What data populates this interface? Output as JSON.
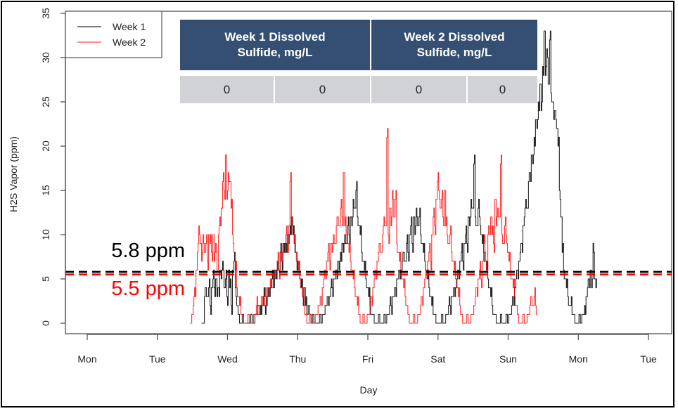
{
  "chart_data": {
    "type": "line",
    "title": "",
    "xlabel": "Day",
    "ylabel": "H2S Vapor (ppm)",
    "ylim": [
      0,
      35
    ],
    "yticks": [
      0,
      5,
      10,
      15,
      20,
      25,
      30,
      35
    ],
    "xlim_days": [
      -0.3,
      8.3
    ],
    "xticks": [
      {
        "day": 0,
        "label": "Mon"
      },
      {
        "day": 1,
        "label": "Tue"
      },
      {
        "day": 2,
        "label": "Wed"
      },
      {
        "day": 3,
        "label": "Thu"
      },
      {
        "day": 4,
        "label": "Fri"
      },
      {
        "day": 5,
        "label": "Sat"
      },
      {
        "day": 6,
        "label": "Sun"
      },
      {
        "day": 7,
        "label": "Mon"
      },
      {
        "day": 8,
        "label": "Tue"
      }
    ],
    "grid": false,
    "legend": {
      "position": "top-left",
      "entries": [
        {
          "name": "Week 1",
          "color": "#000000"
        },
        {
          "name": "Week 2",
          "color": "#ff0000"
        }
      ]
    },
    "series": [
      {
        "name": "Week 1",
        "color": "#000000",
        "x_day_start": 1.63,
        "x_step_day": 0.02,
        "values": [
          0,
          0,
          3,
          4,
          3,
          4,
          2,
          4,
          5,
          4,
          5,
          3,
          4,
          6,
          5,
          7,
          4,
          5,
          3,
          6,
          4,
          2,
          6,
          7,
          4,
          2,
          1,
          0,
          0,
          1,
          0,
          0,
          0,
          0,
          0,
          1,
          0,
          0,
          1,
          1,
          2,
          1,
          2,
          2,
          3,
          2,
          3,
          3,
          4,
          4,
          5,
          5,
          6,
          5,
          7,
          6,
          8,
          7,
          9,
          8,
          9,
          10,
          9,
          11,
          12,
          10,
          9,
          8,
          6,
          7,
          5,
          4,
          3,
          4,
          2,
          1,
          2,
          1,
          0,
          1,
          0,
          0,
          0,
          0,
          1,
          0,
          1,
          1,
          2,
          2,
          3,
          3,
          4,
          4,
          5,
          5,
          6,
          7,
          6,
          8,
          9,
          8,
          10,
          9,
          11,
          10,
          12,
          11,
          14,
          13,
          15,
          12,
          11,
          10,
          8,
          7,
          6,
          5,
          4,
          3,
          2,
          1,
          1,
          0,
          0,
          0,
          1,
          0,
          0,
          0,
          1,
          0,
          1,
          1,
          2,
          2,
          3,
          3,
          4,
          5,
          5,
          6,
          6,
          7,
          8,
          7,
          9,
          8,
          10,
          11,
          9,
          12,
          10,
          13,
          11,
          12,
          10,
          9,
          8,
          7,
          6,
          5,
          4,
          3,
          2,
          1,
          1,
          0,
          0,
          0,
          0,
          1,
          0,
          0,
          1,
          1,
          2,
          2,
          3,
          3,
          4,
          4,
          5,
          6,
          7,
          8,
          7,
          9,
          10,
          9,
          12,
          11,
          14,
          13,
          18,
          12,
          11,
          13,
          12,
          10,
          9,
          8,
          7,
          6,
          5,
          4,
          3,
          2,
          1,
          1,
          0,
          0,
          0,
          1,
          0,
          0,
          0,
          1,
          0,
          1,
          1,
          2,
          3,
          4,
          5,
          6,
          7,
          8,
          9,
          11,
          12,
          14,
          13,
          16,
          17,
          19,
          18,
          21,
          23,
          22,
          25,
          27,
          24,
          29,
          33,
          28,
          31,
          27,
          32,
          26,
          25,
          23,
          24,
          22,
          20,
          15,
          12,
          8,
          6,
          5,
          4,
          3,
          2,
          2,
          1,
          1,
          0,
          0,
          0,
          1,
          0,
          1,
          1,
          2,
          3,
          4,
          5,
          6,
          4,
          9,
          5,
          4
        ]
      },
      {
        "name": "Week 2",
        "color": "#ff0000",
        "x_day_start": 1.47,
        "x_step_day": 0.02,
        "values": [
          0,
          1,
          2,
          4,
          6,
          8,
          11,
          9,
          7,
          10,
          8,
          9,
          7,
          10,
          9,
          8,
          10,
          7,
          9,
          6,
          10,
          12,
          13,
          16,
          15,
          19,
          14,
          17,
          16,
          13,
          10,
          8,
          6,
          4,
          3,
          2,
          1,
          1,
          0,
          0,
          0,
          1,
          0,
          0,
          0,
          1,
          1,
          2,
          1,
          2,
          2,
          3,
          2,
          3,
          3,
          4,
          3,
          5,
          4,
          5,
          6,
          5,
          7,
          6,
          8,
          7,
          9,
          8,
          10,
          9,
          11,
          16,
          12,
          10,
          9,
          8,
          7,
          6,
          5,
          4,
          3,
          2,
          1,
          0,
          0,
          1,
          0,
          0,
          0,
          1,
          1,
          2,
          2,
          3,
          4,
          5,
          6,
          7,
          8,
          7,
          9,
          8,
          10,
          9,
          11,
          12,
          11,
          13,
          12,
          17,
          11,
          10,
          9,
          8,
          7,
          6,
          5,
          4,
          3,
          2,
          1,
          0,
          0,
          1,
          0,
          0,
          1,
          1,
          2,
          3,
          4,
          5,
          6,
          7,
          8,
          9,
          8,
          10,
          12,
          11,
          21,
          10,
          13,
          11,
          15,
          12,
          14,
          9,
          8,
          7,
          6,
          5,
          4,
          3,
          2,
          1,
          0,
          0,
          0,
          1,
          0,
          0,
          1,
          1,
          2,
          3,
          4,
          5,
          6,
          7,
          8,
          7,
          10,
          12,
          11,
          14,
          16,
          15,
          13,
          14,
          12,
          15,
          11,
          10,
          9,
          10,
          8,
          7,
          6,
          5,
          4,
          3,
          2,
          1,
          0,
          0,
          0,
          1,
          0,
          0,
          1,
          1,
          2,
          3,
          4,
          5,
          6,
          5,
          7,
          9,
          8,
          6,
          10,
          11,
          12,
          10,
          9,
          14,
          11,
          13,
          12,
          18,
          10,
          9,
          11,
          10,
          8,
          7,
          6,
          5,
          4,
          3,
          2,
          1,
          0,
          0,
          0,
          1,
          0,
          0,
          1,
          1,
          2,
          3,
          2,
          3,
          2
        ]
      }
    ],
    "reference_lines": [
      {
        "value": 5.8,
        "color": "#000000",
        "style": "dashed",
        "label": "5.8 ppm"
      },
      {
        "value": 5.5,
        "color": "#ff0000",
        "style": "dashed",
        "label": "5.5 ppm"
      }
    ]
  },
  "inset_table": {
    "headers": [
      "Week 1 Dissolved Sulfide, mg/L",
      "Week 2 Dissolved Sulfide, mg/L"
    ],
    "header_lines": [
      [
        "Week 1 Dissolved",
        "Sulfide,  mg/L"
      ],
      [
        "Week 2 Dissolved",
        "Sulfide,  mg/L"
      ]
    ],
    "values": [
      "0",
      "0",
      "0",
      "0"
    ],
    "header_color": "#354f72",
    "cell_color": "#d1d2d6"
  },
  "annotations": {
    "black_label": "5.8 ppm",
    "red_label": "5.5 ppm"
  }
}
